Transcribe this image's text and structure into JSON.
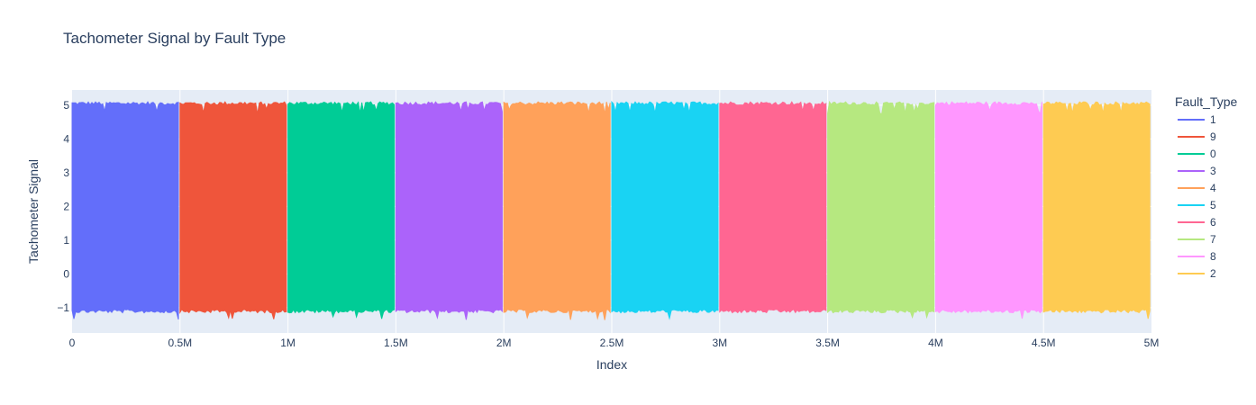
{
  "chart_data": {
    "type": "line",
    "title": "Tachometer Signal by Fault Type",
    "xlabel": "Index",
    "ylabel": "Tachometer Signal",
    "xlim": [
      0,
      5000000
    ],
    "ylim": [
      -1.75,
      5.45
    ],
    "x_ticks": [
      {
        "value": 0,
        "label": "0"
      },
      {
        "value": 500000,
        "label": "0.5M"
      },
      {
        "value": 1000000,
        "label": "1M"
      },
      {
        "value": 1500000,
        "label": "1.5M"
      },
      {
        "value": 2000000,
        "label": "2M"
      },
      {
        "value": 2500000,
        "label": "2.5M"
      },
      {
        "value": 3000000,
        "label": "3M"
      },
      {
        "value": 3500000,
        "label": "3.5M"
      },
      {
        "value": 4000000,
        "label": "4M"
      },
      {
        "value": 4500000,
        "label": "4.5M"
      },
      {
        "value": 5000000,
        "label": "5M"
      }
    ],
    "y_ticks": [
      {
        "value": -1,
        "label": "−1"
      },
      {
        "value": 0,
        "label": "0"
      },
      {
        "value": 1,
        "label": "1"
      },
      {
        "value": 2,
        "label": "2"
      },
      {
        "value": 3,
        "label": "3"
      },
      {
        "value": 4,
        "label": "4"
      },
      {
        "value": 5,
        "label": "5"
      }
    ],
    "grid": true,
    "legend": {
      "title": "Fault_Type",
      "placement": "right"
    },
    "series": [
      {
        "name": "1",
        "color": "#636efa",
        "x_range": [
          0,
          500000
        ],
        "y_low": -1.05,
        "y_high": 5.0
      },
      {
        "name": "9",
        "color": "#ef553b",
        "x_range": [
          500000,
          1000000
        ],
        "y_low": -1.05,
        "y_high": 5.0
      },
      {
        "name": "0",
        "color": "#00cc96",
        "x_range": [
          1000000,
          1500000
        ],
        "y_low": -1.05,
        "y_high": 5.0
      },
      {
        "name": "3",
        "color": "#ab63fa",
        "x_range": [
          1500000,
          2000000
        ],
        "y_low": -1.05,
        "y_high": 5.0
      },
      {
        "name": "4",
        "color": "#ffa15a",
        "x_range": [
          2000000,
          2500000
        ],
        "y_low": -1.05,
        "y_high": 5.0
      },
      {
        "name": "5",
        "color": "#19d3f3",
        "x_range": [
          2500000,
          3000000
        ],
        "y_low": -1.05,
        "y_high": 5.0
      },
      {
        "name": "6",
        "color": "#ff6692",
        "x_range": [
          3000000,
          3500000
        ],
        "y_low": -1.05,
        "y_high": 5.0
      },
      {
        "name": "7",
        "color": "#b6e880",
        "x_range": [
          3500000,
          4000000
        ],
        "y_low": -1.05,
        "y_high": 5.0
      },
      {
        "name": "8",
        "color": "#ff97ff",
        "x_range": [
          4000000,
          4500000
        ],
        "y_low": -1.05,
        "y_high": 5.0
      },
      {
        "name": "2",
        "color": "#fecb52",
        "x_range": [
          4500000,
          5000000
        ],
        "y_low": -1.05,
        "y_high": 5.0
      }
    ]
  }
}
